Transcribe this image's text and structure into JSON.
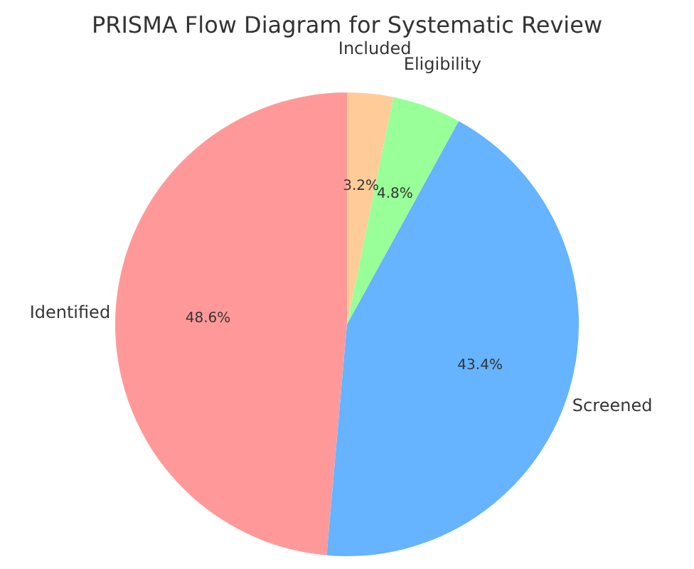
{
  "chart_data": {
    "type": "pie",
    "title": "PRISMA Flow Diagram for Systematic Review",
    "categories": [
      "Identified",
      "Screened",
      "Eligibility",
      "Included"
    ],
    "values": [
      48.6,
      43.4,
      4.8,
      3.2
    ],
    "colors": [
      "#ff9999",
      "#66b3ff",
      "#99ff99",
      "#ffcc99"
    ],
    "value_labels": [
      "48.6%",
      "43.4%",
      "4.8%",
      "3.2%"
    ]
  }
}
